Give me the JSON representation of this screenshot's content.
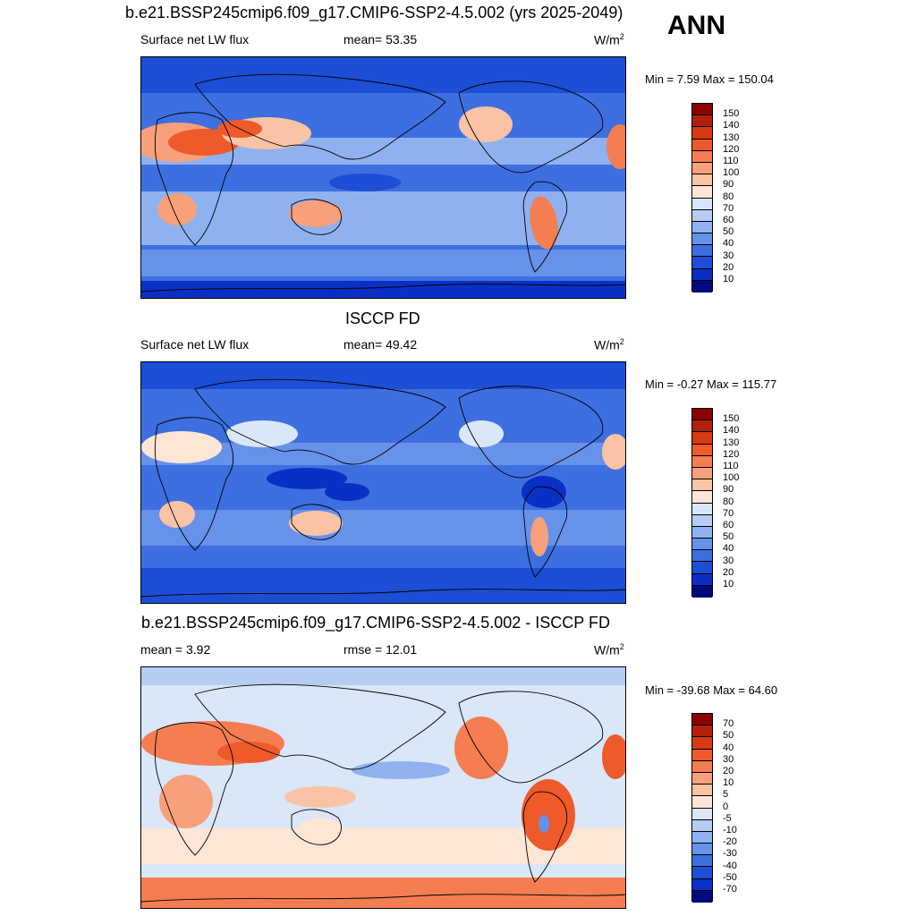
{
  "figure": {
    "title": "b.e21.BSSP245cmip6.f09_g17.CMIP6-SSP2-4.5.002 (yrs 2025-2049)",
    "season": "ANN"
  },
  "panels": [
    {
      "title": "",
      "left_label": "Surface net LW flux",
      "center_label": "mean=  53.35",
      "units": "W/m",
      "units_sup": "2",
      "minmax": "Min =   7.59 Max = 150.04",
      "levels": [
        "150",
        "140",
        "130",
        "120",
        "110",
        "100",
        "90",
        "80",
        "70",
        "60",
        "50",
        "40",
        "30",
        "20",
        "10"
      ],
      "colors": [
        "#8b0000",
        "#b3200a",
        "#d73a12",
        "#ee5a2a",
        "#f47e52",
        "#f7a07b",
        "#fac3a6",
        "#fde6d6",
        "#d9e7f8",
        "#b5cdf5",
        "#8fb1f0",
        "#6792ea",
        "#3d6fe0",
        "#1c4ed6",
        "#0a2fc4",
        "#000a7d"
      ],
      "tags": [
        "sw-ir-model",
        "africa-hot",
        "arabia-hot",
        "australia-warm",
        "andes-hot",
        "namerica-warm"
      ]
    },
    {
      "title": "ISCCP FD",
      "left_label": "Surface net LW flux",
      "center_label": "mean=  49.42",
      "units": "W/m",
      "units_sup": "2",
      "minmax": "Min =  -0.27 Max = 115.77",
      "levels": [
        "150",
        "140",
        "130",
        "120",
        "110",
        "100",
        "90",
        "80",
        "70",
        "60",
        "50",
        "40",
        "30",
        "20",
        "10"
      ],
      "colors": [
        "#8b0000",
        "#b3200a",
        "#d73a12",
        "#ee5a2a",
        "#f47e52",
        "#f7a07b",
        "#fac3a6",
        "#fde6d6",
        "#d9e7f8",
        "#b5cdf5",
        "#8fb1f0",
        "#6792ea",
        "#3d6fe0",
        "#1c4ed6",
        "#0a2fc4",
        "#000a7d"
      ],
      "tags": [
        "obs"
      ]
    },
    {
      "title": "b.e21.BSSP245cmip6.f09_g17.CMIP6-SSP2-4.5.002 - ISCCP FD",
      "left_label": "mean =   3.92",
      "center_label": "rmse =  12.01",
      "units": "W/m",
      "units_sup": "2",
      "minmax": "Min = -39.68 Max =  64.60",
      "levels": [
        "70",
        "50",
        "40",
        "30",
        "20",
        "10",
        "5",
        "0",
        "-5",
        "-10",
        "-20",
        "-30",
        "-40",
        "-50",
        "-70"
      ],
      "colors": [
        "#8b0000",
        "#b3200a",
        "#d73a12",
        "#ee5a2a",
        "#f47e52",
        "#f7a07b",
        "#fac3a6",
        "#fde6d6",
        "#d9e7f8",
        "#b5cdf5",
        "#8fb1f0",
        "#6792ea",
        "#3d6fe0",
        "#1c4ed6",
        "#0a2fc4",
        "#000a7d"
      ],
      "tags": [
        "diff"
      ]
    }
  ]
}
